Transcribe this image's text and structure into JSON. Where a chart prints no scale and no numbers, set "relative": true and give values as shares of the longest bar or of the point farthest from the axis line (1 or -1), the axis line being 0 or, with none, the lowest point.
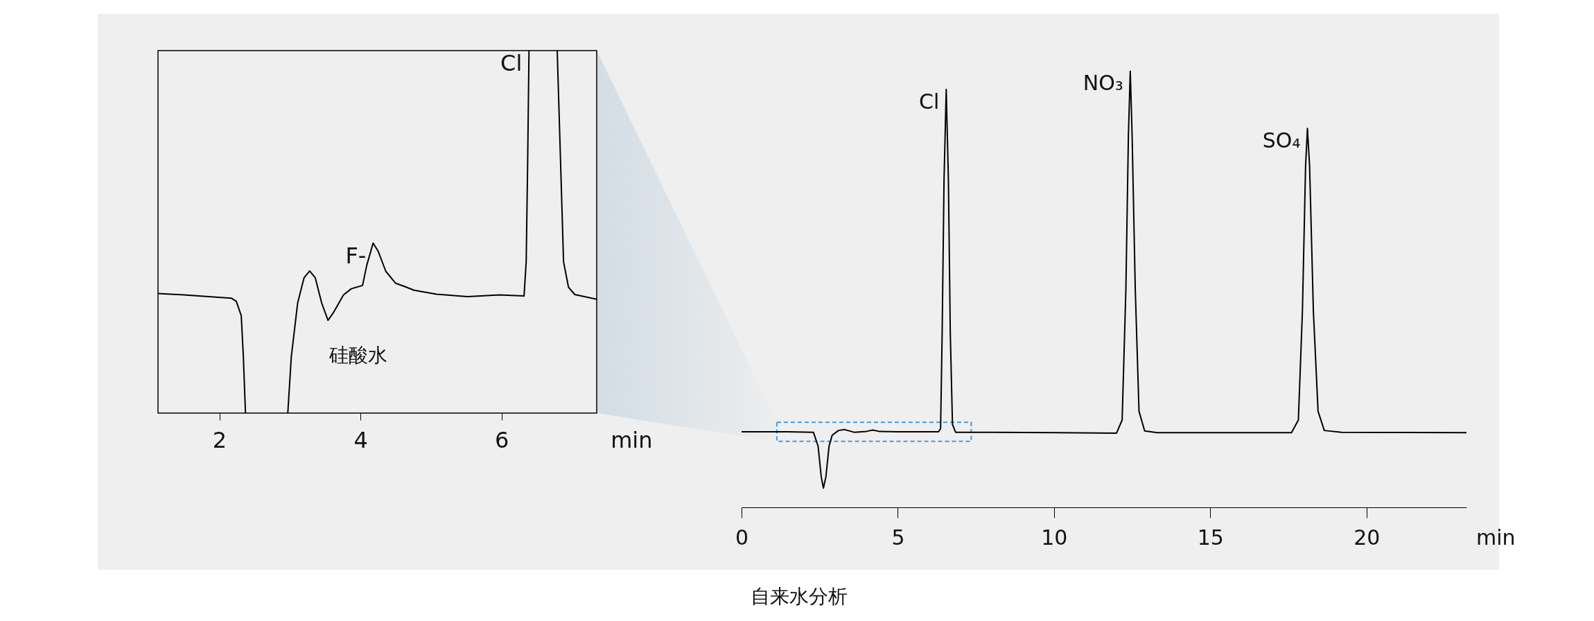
{
  "chart_data": [
    {
      "type": "line",
      "relative": true,
      "xlabel": "min",
      "xlim": [
        1.13,
        7.35
      ],
      "xticks": [
        2,
        4,
        6
      ],
      "x": [
        1.13,
        1.5,
        2.17,
        2.24,
        2.31,
        2.34,
        2.37,
        2.5,
        2.97,
        3.02,
        3.11,
        3.2,
        3.28,
        3.36,
        3.45,
        3.54,
        3.62,
        3.76,
        3.87,
        4.03,
        4.09,
        4.18,
        4.25,
        4.36,
        4.5,
        4.63,
        4.76,
        5.08,
        5.52,
        5.97,
        6.32,
        6.35,
        6.37,
        6.39,
        6.6,
        6.79,
        6.84,
        6.88,
        6.95,
        7.04,
        7.35
      ],
      "series": [
        {
          "color": "#000000",
          "values": [
            0.33,
            0.326,
            0.317,
            0.308,
            0.269,
            0.156,
            0,
            null,
            0,
            0.156,
            0.304,
            0.373,
            0.392,
            0.373,
            0.304,
            0.256,
            0.278,
            0.326,
            0.343,
            0.352,
            0.408,
            0.469,
            0.447,
            0.391,
            0.358,
            0.349,
            0.339,
            0.328,
            0.321,
            0.326,
            0.323,
            0.417,
            0.677,
            1,
            null,
            1,
            0.677,
            0.417,
            0.347,
            0.327,
            0.314
          ]
        }
      ],
      "annotations": [
        {
          "text": "Cl",
          "x": 6.39,
          "y": 1
        },
        {
          "text": "F-",
          "x": 4.18,
          "y": 0.469
        },
        "硅酸水"
      ]
    },
    {
      "type": "line",
      "relative": true,
      "xlabel": "min",
      "xlim": [
        0,
        23.2
      ],
      "xticks": [
        0,
        5,
        10,
        15,
        20
      ],
      "x": [
        0,
        1.5,
        2.3,
        2.45,
        2.55,
        2.62,
        2.7,
        2.8,
        2.9,
        3.1,
        3.3,
        3.6,
        4.0,
        4.2,
        4.4,
        5,
        6.3,
        6.37,
        6.42,
        6.48,
        6.55,
        6.62,
        6.68,
        6.75,
        6.85,
        8,
        12.0,
        12.18,
        12.3,
        12.38,
        12.44,
        12.5,
        12.6,
        12.72,
        12.9,
        13.3,
        17.6,
        17.82,
        17.95,
        18.05,
        18.11,
        18.18,
        18.3,
        18.45,
        18.65,
        19.2,
        23.2
      ],
      "series": [
        {
          "color": "#000000",
          "values": [
            0.173,
            0.173,
            0.172,
            0.14,
            0.07,
            0.044,
            0.07,
            0.14,
            0.165,
            0.176,
            0.178,
            0.172,
            0.174,
            0.177,
            0.174,
            0.173,
            0.173,
            0.18,
            0.4,
            0.75,
            0.957,
            0.75,
            0.4,
            0.19,
            0.172,
            0.172,
            0.17,
            0.2,
            0.5,
            0.85,
            1,
            0.85,
            0.5,
            0.22,
            0.175,
            0.171,
            0.171,
            0.2,
            0.45,
            0.78,
            0.868,
            0.78,
            0.45,
            0.22,
            0.176,
            0.172,
            0.171
          ]
        }
      ],
      "annotations": [
        {
          "text": "Cl",
          "x": 6.55,
          "y": 0.957
        },
        {
          "text": "NO₃",
          "x": 12.44,
          "y": 1
        },
        {
          "text": "SO₄",
          "x": 18.11,
          "y": 0.868
        },
        "自来水分析"
      ]
    }
  ]
}
